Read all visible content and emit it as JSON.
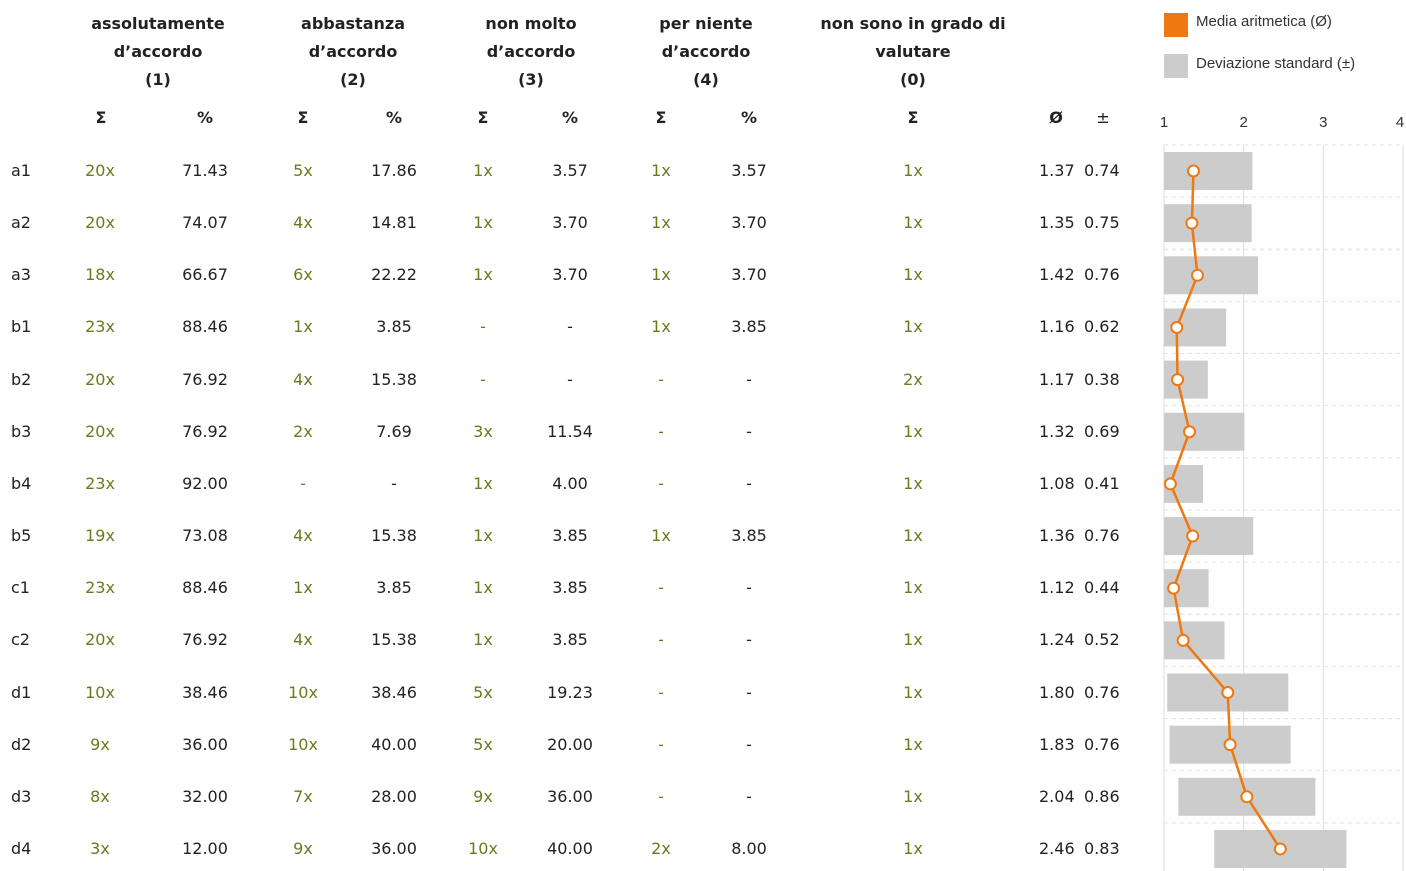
{
  "headers": {
    "col1": [
      "assolutamente",
      "d’accordo",
      "(1)"
    ],
    "col2": [
      "abbastanza",
      "d’accordo",
      "(2)"
    ],
    "col3": [
      "non molto",
      "d’accordo",
      "(3)"
    ],
    "col4": [
      "per niente",
      "d’accordo",
      "(4)"
    ],
    "col0": [
      "non sono in grado di",
      "valutare",
      "(0)"
    ]
  },
  "subheaders": {
    "sum": "Σ",
    "pct": "%",
    "mean": "Ø",
    "sd": "±"
  },
  "legend": {
    "mean_label": "Media aritmetica (Ø)",
    "sd_label": "Deviazione standard (±)",
    "mean_color": "#f07810",
    "sd_color": "#cccccc"
  },
  "rows": [
    {
      "id": "a1",
      "c1": "20x",
      "p1": "71.43",
      "c2": "5x",
      "p2": "17.86",
      "c3": "1x",
      "p3": "3.57",
      "c4": "1x",
      "p4": "3.57",
      "c0": "1x",
      "mean": "1.37",
      "sd": "0.74"
    },
    {
      "id": "a2",
      "c1": "20x",
      "p1": "74.07",
      "c2": "4x",
      "p2": "14.81",
      "c3": "1x",
      "p3": "3.70",
      "c4": "1x",
      "p4": "3.70",
      "c0": "1x",
      "mean": "1.35",
      "sd": "0.75"
    },
    {
      "id": "a3",
      "c1": "18x",
      "p1": "66.67",
      "c2": "6x",
      "p2": "22.22",
      "c3": "1x",
      "p3": "3.70",
      "c4": "1x",
      "p4": "3.70",
      "c0": "1x",
      "mean": "1.42",
      "sd": "0.76"
    },
    {
      "id": "b1",
      "c1": "23x",
      "p1": "88.46",
      "c2": "1x",
      "p2": "3.85",
      "c3": "-",
      "p3": "-",
      "c4": "1x",
      "p4": "3.85",
      "c0": "1x",
      "mean": "1.16",
      "sd": "0.62"
    },
    {
      "id": "b2",
      "c1": "20x",
      "p1": "76.92",
      "c2": "4x",
      "p2": "15.38",
      "c3": "-",
      "p3": "-",
      "c4": "-",
      "p4": "-",
      "c0": "2x",
      "mean": "1.17",
      "sd": "0.38"
    },
    {
      "id": "b3",
      "c1": "20x",
      "p1": "76.92",
      "c2": "2x",
      "p2": "7.69",
      "c3": "3x",
      "p3": "11.54",
      "c4": "-",
      "p4": "-",
      "c0": "1x",
      "mean": "1.32",
      "sd": "0.69"
    },
    {
      "id": "b4",
      "c1": "23x",
      "p1": "92.00",
      "c2": "-",
      "p2": "-",
      "c3": "1x",
      "p3": "4.00",
      "c4": "-",
      "p4": "-",
      "c0": "1x",
      "mean": "1.08",
      "sd": "0.41"
    },
    {
      "id": "b5",
      "c1": "19x",
      "p1": "73.08",
      "c2": "4x",
      "p2": "15.38",
      "c3": "1x",
      "p3": "3.85",
      "c4": "1x",
      "p4": "3.85",
      "c0": "1x",
      "mean": "1.36",
      "sd": "0.76"
    },
    {
      "id": "c1",
      "c1": "23x",
      "p1": "88.46",
      "c2": "1x",
      "p2": "3.85",
      "c3": "1x",
      "p3": "3.85",
      "c4": "-",
      "p4": "-",
      "c0": "1x",
      "mean": "1.12",
      "sd": "0.44"
    },
    {
      "id": "c2",
      "c1": "20x",
      "p1": "76.92",
      "c2": "4x",
      "p2": "15.38",
      "c3": "1x",
      "p3": "3.85",
      "c4": "-",
      "p4": "-",
      "c0": "1x",
      "mean": "1.24",
      "sd": "0.52"
    },
    {
      "id": "d1",
      "c1": "10x",
      "p1": "38.46",
      "c2": "10x",
      "p2": "38.46",
      "c3": "5x",
      "p3": "19.23",
      "c4": "-",
      "p4": "-",
      "c0": "1x",
      "mean": "1.80",
      "sd": "0.76"
    },
    {
      "id": "d2",
      "c1": "9x",
      "p1": "36.00",
      "c2": "10x",
      "p2": "40.00",
      "c3": "5x",
      "p3": "20.00",
      "c4": "-",
      "p4": "-",
      "c0": "1x",
      "mean": "1.83",
      "sd": "0.76"
    },
    {
      "id": "d3",
      "c1": "8x",
      "p1": "32.00",
      "c2": "7x",
      "p2": "28.00",
      "c3": "9x",
      "p3": "36.00",
      "c4": "-",
      "p4": "-",
      "c0": "1x",
      "mean": "2.04",
      "sd": "0.86"
    },
    {
      "id": "d4",
      "c1": "3x",
      "p1": "12.00",
      "c2": "9x",
      "p2": "36.00",
      "c3": "10x",
      "p3": "40.00",
      "c4": "2x",
      "p4": "8.00",
      "c0": "1x",
      "mean": "2.46",
      "sd": "0.83"
    }
  ],
  "chart_data": {
    "type": "scatter",
    "categories": [
      "a1",
      "a2",
      "a3",
      "b1",
      "b2",
      "b3",
      "b4",
      "b5",
      "c1",
      "c2",
      "d1",
      "d2",
      "d3",
      "d4"
    ],
    "series": [
      {
        "name": "Media aritmetica (Ø)",
        "values": [
          1.37,
          1.35,
          1.42,
          1.16,
          1.17,
          1.32,
          1.08,
          1.36,
          1.12,
          1.24,
          1.8,
          1.83,
          2.04,
          2.46
        ]
      },
      {
        "name": "Deviazione standard (±)",
        "values": [
          0.74,
          0.75,
          0.76,
          0.62,
          0.38,
          0.69,
          0.41,
          0.76,
          0.44,
          0.52,
          0.76,
          0.76,
          0.86,
          0.83
        ]
      }
    ],
    "x_ticks": [
      "1",
      "2",
      "3",
      "4"
    ],
    "xlim": [
      1,
      4
    ],
    "grid": true,
    "legend_position": "top-right"
  }
}
